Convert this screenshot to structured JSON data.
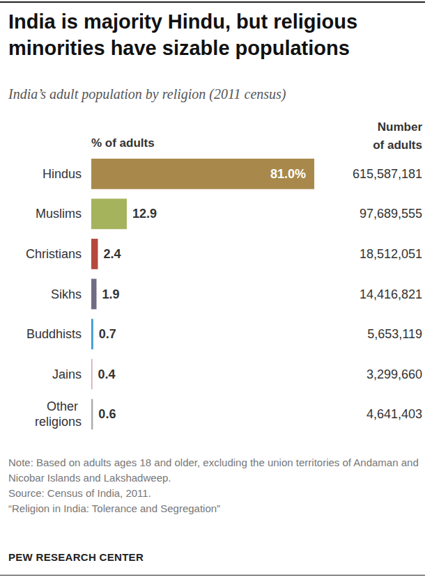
{
  "chart_data": {
    "type": "bar",
    "orientation": "horizontal",
    "title": "India is majority Hindu, but religious minorities have sizable populations",
    "subtitle": "India’s adult population by religion (2011 census)",
    "value_header": "% of adults",
    "categories": [
      "Hindus",
      "Muslims",
      "Christians",
      "Sikhs",
      "Buddhists",
      "Jains",
      "Other religions"
    ],
    "values": [
      81.0,
      12.9,
      2.4,
      1.9,
      0.7,
      0.4,
      0.6
    ],
    "value_labels": [
      "81.0%",
      "12.9",
      "2.4",
      "1.9",
      "0.7",
      "0.4",
      "0.6"
    ],
    "colors": [
      "#a8894b",
      "#a4b35c",
      "#b5493c",
      "#716b84",
      "#3a9ad2",
      "#d9a3ab",
      "#aaaaaa"
    ],
    "count_header": "Number of adults",
    "counts": [
      615587181,
      97689555,
      18512051,
      14416821,
      5653119,
      3299660,
      4641403
    ],
    "count_labels": [
      "615,587,181",
      "97,689,555",
      "18,512,051",
      "14,416,821",
      "5,653,119",
      "3,299,660",
      "4,641,403"
    ],
    "xlim": [
      0,
      81
    ],
    "tick_labels": false,
    "grid": false,
    "data_labels": true,
    "note": "Note: Based on adults ages 18 and older, excluding the union territories of Andaman and Nicobar Islands and Lakshadweep.",
    "source": "Source: Census of India, 2011.",
    "report": "“Religion in India: Tolerance and Segregation”",
    "credit": "PEW RESEARCH CENTER"
  }
}
